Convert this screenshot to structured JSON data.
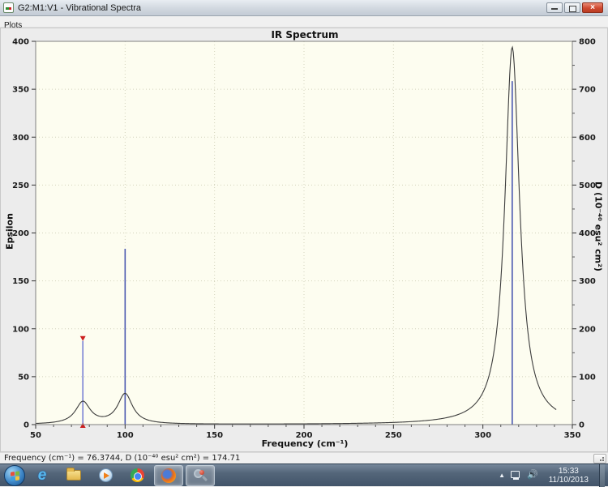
{
  "window": {
    "title": "G2:M1:V1 - Vibrational Spectra",
    "controls": {
      "close_glyph": "×"
    }
  },
  "menu": {
    "items": [
      {
        "label": "Plots"
      }
    ]
  },
  "chart_data": {
    "type": "line+stick",
    "title": "IR Spectrum",
    "xlabel": "Frequency (cm⁻¹)",
    "ylabel_left": "Epsilon",
    "ylabel_right": "D (10⁻⁴⁰ esu² cm²)",
    "x_range": [
      50,
      350
    ],
    "x_ticks": [
      50,
      100,
      150,
      200,
      250,
      300,
      350
    ],
    "x_minor_step": 10,
    "y_left_range": [
      0,
      400
    ],
    "y_left_ticks": [
      0,
      50,
      100,
      150,
      200,
      250,
      300,
      350,
      400
    ],
    "y_right_range": [
      0,
      800
    ],
    "y_right_ticks": [
      0,
      100,
      200,
      300,
      400,
      500,
      600,
      700,
      800
    ],
    "y_right_minor_step": 50,
    "grid": true,
    "legend": "none",
    "sticks": [
      {
        "frequency": 76.3744,
        "d": 174.71,
        "selected": true
      },
      {
        "frequency": 100.0,
        "d": 367,
        "selected": false
      },
      {
        "frequency": 316.4,
        "d": 717,
        "selected": false
      }
    ],
    "curve": {
      "model": "lorentzian_sum",
      "x_start": 50,
      "x_end": 341,
      "step": 0.5,
      "peaks": [
        {
          "center": 76.4,
          "height_epsilon": 23,
          "hwhm": 5
        },
        {
          "center": 100.0,
          "height_epsilon": 31.5,
          "hwhm": 5
        },
        {
          "center": 316.4,
          "height_epsilon": 394,
          "hwhm": 5
        }
      ]
    },
    "colors": {
      "stick": "#4a58b0",
      "stick_selected": "#7a82d4",
      "selected_marker": "#cc1f1f",
      "curve": "#3c3c3c",
      "plot_bg": "#fdfdf0",
      "grid": "#d2d2bc",
      "axis": "#808080",
      "tick_text": "#1a1a1a"
    }
  },
  "status_bar": {
    "text": "Frequency (cm⁻¹) = 76.3744, D (10⁻⁴⁰ esu² cm²) = 174.71"
  },
  "taskbar": {
    "apps": [
      "start",
      "internet-explorer",
      "windows-explorer",
      "media-player",
      "chrome",
      "firefox",
      "gaussview"
    ],
    "active_apps": [
      "firefox",
      "gaussview"
    ],
    "tray": {
      "time": "15:33",
      "date": "11/10/2013"
    }
  }
}
